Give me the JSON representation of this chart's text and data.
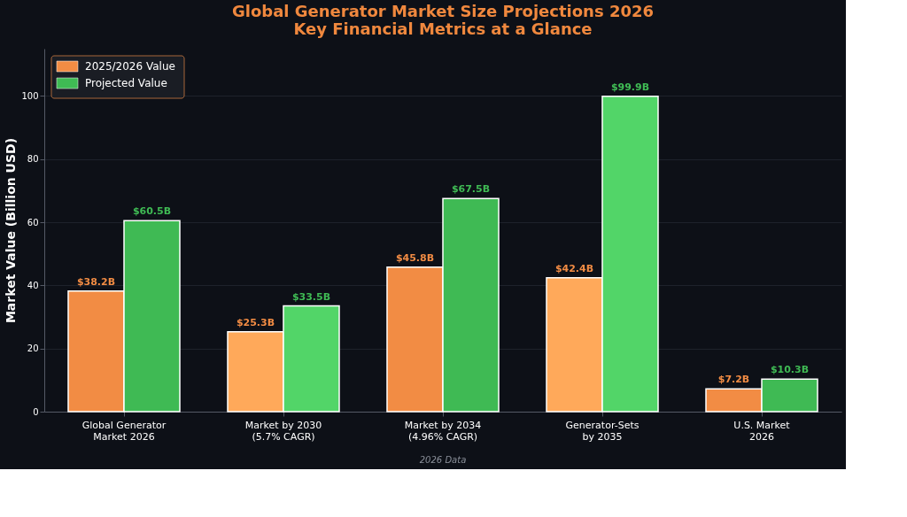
{
  "chart_data": {
    "type": "bar",
    "title": "Global Generator Market Size Projections 2026\nKey Financial Metrics at a Glance",
    "categories": [
      "Global Generator\nMarket 2026",
      "Market by 2030\n(5.7% CAGR)",
      "Market by 2034\n(4.96% CAGR)",
      "Generator-Sets\nby 2035",
      "U.S. Market\n2026"
    ],
    "ylabel": "Market Value (Billion USD)",
    "series": [
      {
        "name": "2025/2026 Value",
        "color": "#f28c44",
        "colors": [
          "#f28c44",
          "#ffa95a",
          "#f28c44",
          "#ffa95a",
          "#f28c44"
        ],
        "values": [
          38.2,
          25.3,
          45.8,
          42.4,
          7.2
        ],
        "value_labels": [
          "$38.2B",
          "$25.3B",
          "$45.8B",
          "$42.4B",
          "$7.2B"
        ]
      },
      {
        "name": "Projected Value",
        "color": "#3fba54",
        "colors": [
          "#3fba54",
          "#52d568",
          "#3fba54",
          "#52d568",
          "#3fba54"
        ],
        "values": [
          60.5,
          33.5,
          67.5,
          99.9,
          10.3
        ],
        "value_labels": [
          "$60.5B",
          "$33.5B",
          "$67.5B",
          "$99.9B",
          "$10.3B"
        ]
      }
    ],
    "ylim": [
      0,
      115
    ],
    "yticks": [
      0,
      20,
      40,
      60,
      80,
      100
    ],
    "grid": "y",
    "legend": "top left",
    "annotations": [
      "2026 Data"
    ]
  }
}
